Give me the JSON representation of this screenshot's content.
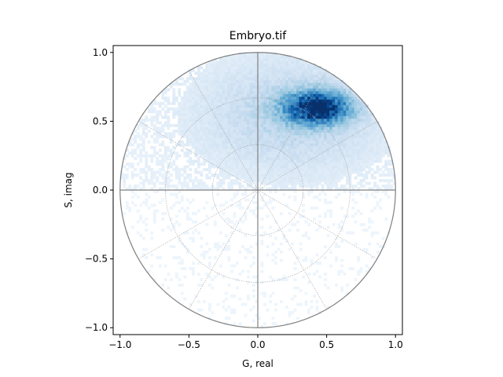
{
  "chart_data": {
    "type": "heatmap",
    "title": "Embryo.tif",
    "xlabel": "G, real",
    "ylabel": "S, imag",
    "xlim": [
      -1.05,
      1.05
    ],
    "ylim": [
      -1.05,
      1.05
    ],
    "x_ticks": [
      -1.0,
      -0.5,
      0.0,
      0.5,
      1.0
    ],
    "y_ticks": [
      -1.0,
      -0.5,
      0.0,
      0.5,
      1.0
    ],
    "x_tick_labels": [
      "−1.0",
      "−0.5",
      "0.0",
      "0.5",
      "1.0"
    ],
    "y_tick_labels": [
      "−1.0",
      "−0.5",
      "0.0",
      "0.5",
      "1.0"
    ],
    "grid": "polar",
    "grid_circle_radii": [
      0.33,
      0.67,
      1.0
    ],
    "grid_radial_angles_deg": [
      0,
      30,
      60,
      90,
      120,
      150,
      180,
      210,
      240,
      270,
      300,
      330
    ],
    "colormap": "Blues",
    "colors": {
      "circle": "#808080",
      "axes_lines": "#808080",
      "grid": "#a0a0a0",
      "peak": "#08306b"
    },
    "density": {
      "peak_center": [
        0.43,
        0.6
      ],
      "peak_spread": [
        0.16,
        0.08
      ],
      "support": "unit_disk",
      "upper_half_weight": "high",
      "lower_half_weight": "sparse"
    }
  }
}
